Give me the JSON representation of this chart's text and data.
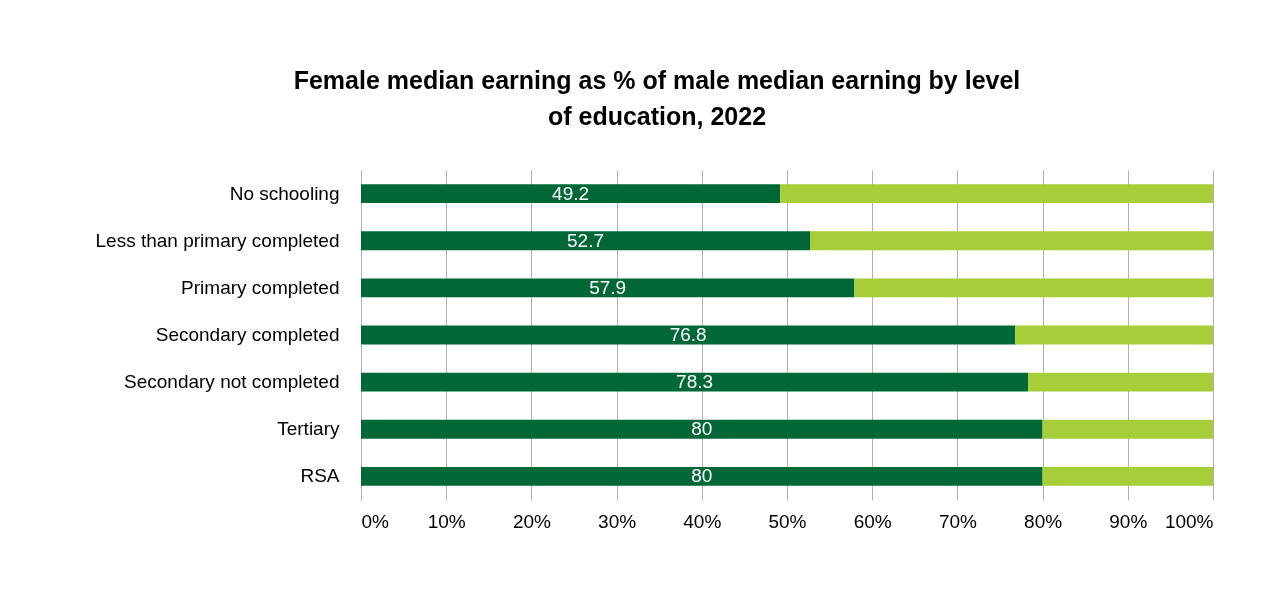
{
  "chart_data": {
    "type": "bar",
    "orientation": "horizontal",
    "stacked": true,
    "title": "Female median earning as % of male median earning by level of education, 2022",
    "categories": [
      "No schooling",
      "Less than primary completed",
      "Primary completed",
      "Secondary completed",
      "Secondary not completed",
      "Tertiary",
      "RSA"
    ],
    "series": [
      {
        "color": "#006837",
        "values": [
          49.2,
          52.7,
          57.9,
          76.8,
          78.3,
          80,
          80
        ],
        "value_labels": [
          "49.2",
          "52.7",
          "57.9",
          "76.8",
          "78.3",
          "80",
          "80"
        ]
      },
      {
        "color": "#a6ce39",
        "values": [
          50.8,
          47.3,
          42.1,
          23.2,
          21.7,
          20,
          20
        ]
      }
    ],
    "xlim": [
      0,
      100
    ],
    "xticks": [
      {
        "value": 0,
        "label": "0%"
      },
      {
        "value": 10,
        "label": "10%"
      },
      {
        "value": 20,
        "label": "20%"
      },
      {
        "value": 30,
        "label": "30%"
      },
      {
        "value": 40,
        "label": "40%"
      },
      {
        "value": 50,
        "label": "50%"
      },
      {
        "value": 60,
        "label": "60%"
      },
      {
        "value": 70,
        "label": "70%"
      },
      {
        "value": 80,
        "label": "80%"
      },
      {
        "value": 90,
        "label": "90%"
      },
      {
        "value": 100,
        "label": "100%"
      }
    ],
    "grid": "x",
    "legend": false
  }
}
